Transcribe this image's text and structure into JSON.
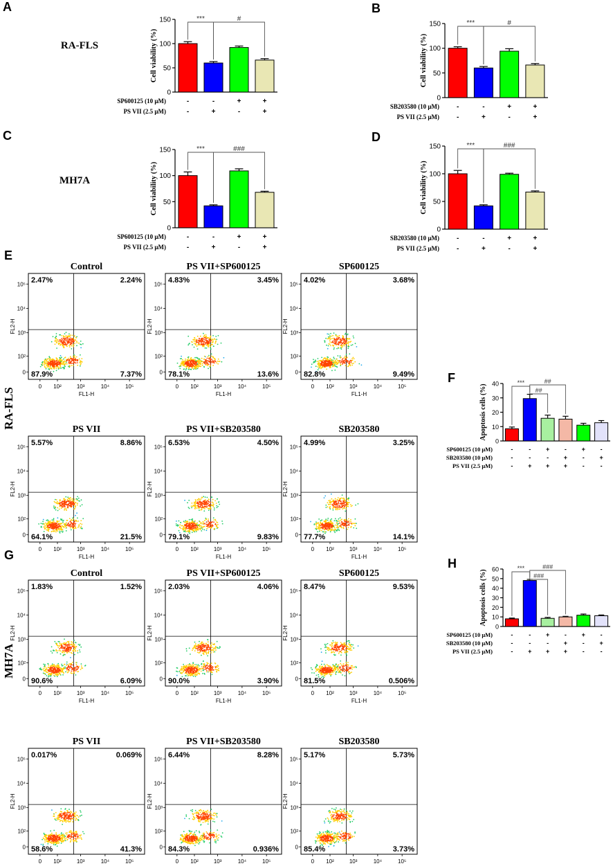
{
  "colors": {
    "red": "#ff0000",
    "blue": "#0000ff",
    "green": "#00ff00",
    "khaki": "#e9e7b4",
    "lightgreen": "#a8f0a0",
    "salmon": "#f4b8a6",
    "lavender": "#e2e2fa"
  },
  "row_labels": {
    "ra_fls": "RA-FLS",
    "mh7a": "MH7A",
    "flow_ra": "RA-FLS",
    "flow_mh": "MH7A"
  },
  "chart_data": [
    {
      "id": "A",
      "type": "bar",
      "panel_letter": "A",
      "ylabel": "Cell viability (%)",
      "ylim": [
        0,
        150
      ],
      "yticks": [
        "0",
        "50",
        "100",
        "150"
      ],
      "categories": [
        "Control",
        "PS VII",
        "SP600125",
        "PS VII+SP600125"
      ],
      "values": [
        100,
        60,
        92,
        66
      ],
      "errors": [
        4,
        3,
        3,
        3
      ],
      "bar_colors": [
        "red",
        "blue",
        "green",
        "khaki"
      ],
      "sig": [
        {
          "label": "***",
          "from": 0,
          "to": 1
        },
        {
          "label": "#",
          "from": 1,
          "to": 3
        }
      ],
      "conditions": [
        {
          "label": "SP600125 (10 μM)",
          "signs": [
            "-",
            "-",
            "+",
            "+"
          ]
        },
        {
          "label": "PS VII (2.5 μM)",
          "signs": [
            "-",
            "+",
            "-",
            "+"
          ]
        }
      ]
    },
    {
      "id": "B",
      "type": "bar",
      "panel_letter": "B",
      "ylabel": "Cell viability (%)",
      "ylim": [
        0,
        150
      ],
      "yticks": [
        "0",
        "50",
        "100",
        "150"
      ],
      "categories": [
        "Control",
        "PS VII",
        "SB203580",
        "PS VII+SB203580"
      ],
      "values": [
        100,
        60,
        94,
        66
      ],
      "errors": [
        3,
        3,
        5,
        3
      ],
      "bar_colors": [
        "red",
        "blue",
        "green",
        "khaki"
      ],
      "sig": [
        {
          "label": "***",
          "from": 0,
          "to": 1
        },
        {
          "label": "#",
          "from": 1,
          "to": 3
        }
      ],
      "conditions": [
        {
          "label": "SB203580 (10 μM)",
          "signs": [
            "-",
            "-",
            "+",
            "+"
          ]
        },
        {
          "label": "PS VII (2.5 μM)",
          "signs": [
            "-",
            "+",
            "-",
            "+"
          ]
        }
      ]
    },
    {
      "id": "C",
      "type": "bar",
      "panel_letter": "C",
      "ylabel": "Cell viability (%)",
      "ylim": [
        0,
        150
      ],
      "yticks": [
        "0",
        "50",
        "100",
        "150"
      ],
      "categories": [
        "Control",
        "PS VII",
        "SP600125",
        "PS VII+SP600125"
      ],
      "values": [
        100,
        42,
        109,
        68
      ],
      "errors": [
        7,
        2,
        4,
        2
      ],
      "bar_colors": [
        "red",
        "blue",
        "green",
        "khaki"
      ],
      "sig": [
        {
          "label": "***",
          "from": 0,
          "to": 1
        },
        {
          "label": "###",
          "from": 1,
          "to": 3
        }
      ],
      "conditions": [
        {
          "label": "SP600125 (10 μM)",
          "signs": [
            "-",
            "-",
            "+",
            "+"
          ]
        },
        {
          "label": "PS VII (2.5 μM)",
          "signs": [
            "-",
            "+",
            "-",
            "+"
          ]
        }
      ]
    },
    {
      "id": "D",
      "type": "bar",
      "panel_letter": "D",
      "ylabel": "Cell viability (%)",
      "ylim": [
        0,
        150
      ],
      "yticks": [
        "0",
        "50",
        "100",
        "150"
      ],
      "categories": [
        "Control",
        "PS VII",
        "SB203580",
        "PS VII+SB203580"
      ],
      "values": [
        100,
        42,
        99,
        67
      ],
      "errors": [
        6,
        2,
        2,
        2
      ],
      "bar_colors": [
        "red",
        "blue",
        "green",
        "khaki"
      ],
      "sig": [
        {
          "label": "***",
          "from": 0,
          "to": 1
        },
        {
          "label": "###",
          "from": 1,
          "to": 3
        }
      ],
      "conditions": [
        {
          "label": "SB203580 (10 μM)",
          "signs": [
            "-",
            "-",
            "+",
            "+"
          ]
        },
        {
          "label": "PS VII (2.5 μM)",
          "signs": [
            "-",
            "+",
            "-",
            "+"
          ]
        }
      ]
    },
    {
      "id": "F",
      "type": "bar",
      "panel_letter": "F",
      "ylabel": "Apoptosis cells (%)",
      "ylim": [
        0,
        40
      ],
      "yticks": [
        "0",
        "10",
        "20",
        "30",
        "40"
      ],
      "categories": [
        "Control",
        "PS VII",
        "PS VII+SP600125",
        "PS VII+SB203580",
        "SP600125",
        "SB203580"
      ],
      "values": [
        8.5,
        29.5,
        15.8,
        15.2,
        11,
        12.7
      ],
      "errors": [
        1.2,
        3,
        2.2,
        2,
        1.3,
        1.5
      ],
      "bar_colors": [
        "red",
        "blue",
        "lightgreen",
        "salmon",
        "green",
        "lavender"
      ],
      "sig": [
        {
          "label": "***",
          "from": 0,
          "to": 1
        },
        {
          "label": "##",
          "from": 1,
          "to": 2
        },
        {
          "label": "##",
          "from": 1,
          "to": 3
        }
      ],
      "conditions": [
        {
          "label": "SP600125 (10 μM)",
          "signs": [
            "-",
            "-",
            "+",
            "-",
            "+",
            "-"
          ]
        },
        {
          "label": "SB203580 (10 μM)",
          "signs": [
            "-",
            "-",
            "-",
            "+",
            "-",
            "+"
          ]
        },
        {
          "label": "PS VII (2.5 μM)",
          "signs": [
            "-",
            "+",
            "+",
            "+",
            "-",
            "-"
          ]
        }
      ]
    },
    {
      "id": "H",
      "type": "bar",
      "panel_letter": "H",
      "ylabel": "Apoptosis cells (%)",
      "ylim": [
        0,
        60
      ],
      "yticks": [
        "0",
        "10",
        "20",
        "30",
        "40",
        "50",
        "60"
      ],
      "categories": [
        "Control",
        "PS VII",
        "PS VII+SP600125",
        "PS VII+SB203580",
        "SP600125",
        "SB203580"
      ],
      "values": [
        8,
        48,
        8.5,
        10,
        11.8,
        11.2
      ],
      "errors": [
        0.8,
        1.2,
        1,
        0.6,
        1.2,
        0.8
      ],
      "bar_colors": [
        "red",
        "blue",
        "lightgreen",
        "salmon",
        "green",
        "lavender"
      ],
      "sig": [
        {
          "label": "***",
          "from": 0,
          "to": 1
        },
        {
          "label": "###",
          "from": 1,
          "to": 2
        },
        {
          "label": "###",
          "from": 1,
          "to": 3
        }
      ],
      "conditions": [
        {
          "label": "SP600125 (10 μM)",
          "signs": [
            "-",
            "-",
            "+",
            "-",
            "+",
            "-"
          ]
        },
        {
          "label": "SB203580 (10 μM)",
          "signs": [
            "-",
            "-",
            "-",
            "+",
            "-",
            "+"
          ]
        },
        {
          "label": "PS VII (2.5 μM)",
          "signs": [
            "-",
            "+",
            "+",
            "+",
            "-",
            "-"
          ]
        }
      ]
    }
  ],
  "flow_panels": [
    {
      "id": "E",
      "panel_letter": "E",
      "cell_line": "RA-FLS",
      "xlabel": "FL1-H",
      "ylabel": "FL2-H",
      "xticks": [
        "0",
        "10²",
        "10³",
        "10⁴",
        "10⁵"
      ],
      "yticks": [
        "0",
        "10²",
        "10³",
        "10⁴",
        "10⁵"
      ],
      "plots": [
        {
          "title": "Control",
          "ul": "2.47%",
          "ur": "2.24%",
          "ll": "87.9%",
          "lr": "7.37%"
        },
        {
          "title": "PS VII+SP600125",
          "ul": "4.83%",
          "ur": "3.45%",
          "ll": "78.1%",
          "lr": "13.6%"
        },
        {
          "title": "SP600125",
          "ul": "4.02%",
          "ur": "3.68%",
          "ll": "82.8%",
          "lr": "9.49%"
        },
        {
          "title": "PS VII",
          "ul": "5.57%",
          "ur": "8.86%",
          "ll": "64.1%",
          "lr": "21.5%"
        },
        {
          "title": "PS VII+SB203580",
          "ul": "6.53%",
          "ur": "4.50%",
          "ll": "79.1%",
          "lr": "9.83%"
        },
        {
          "title": "SB203580",
          "ul": "4.99%",
          "ur": "3.25%",
          "ll": "77.7%",
          "lr": "14.1%"
        }
      ]
    },
    {
      "id": "G",
      "panel_letter": "G",
      "cell_line": "MH7A",
      "xlabel": "FL1-H",
      "ylabel": "FL2-H",
      "xticks": [
        "0",
        "10²",
        "10³",
        "10⁴",
        "10⁵"
      ],
      "yticks": [
        "0",
        "10²",
        "10³",
        "10⁴",
        "10⁵"
      ],
      "plots": [
        {
          "title": "Control",
          "ul": "1.83%",
          "ur": "1.52%",
          "ll": "90.6%",
          "lr": "6.09%"
        },
        {
          "title": "PS VII+SP600125",
          "ul": "2.03%",
          "ur": "4.06%",
          "ll": "90.0%",
          "lr": "3.90%"
        },
        {
          "title": "SP600125",
          "ul": "8.47%",
          "ur": "9.53%",
          "ll": "81.5%",
          "lr": "0.506%"
        },
        {
          "title": "PS VII",
          "ul": "0.017%",
          "ur": "0.069%",
          "ll": "58.6%",
          "lr": "41.3%"
        },
        {
          "title": "PS VII+SB203580",
          "ul": "6.44%",
          "ur": "8.28%",
          "ll": "84.3%",
          "lr": "0.936%"
        },
        {
          "title": "SB203580",
          "ul": "5.17%",
          "ur": "5.73%",
          "ll": "85.4%",
          "lr": "3.73%"
        }
      ]
    }
  ]
}
